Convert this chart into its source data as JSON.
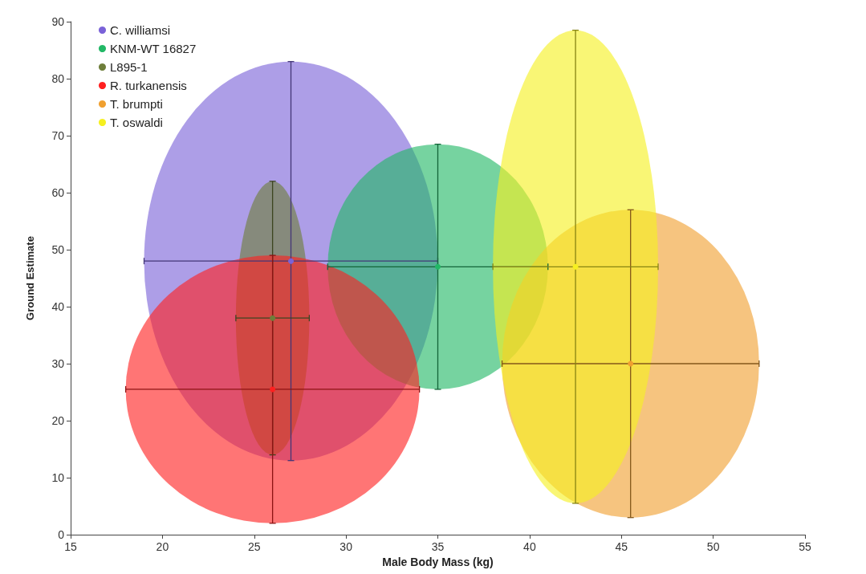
{
  "chart_data": {
    "type": "scatter",
    "xlabel": "Male Body Mass (kg)",
    "ylabel": "Ground Estimate",
    "xlim": [
      15,
      55
    ],
    "xticks": [
      15,
      20,
      25,
      30,
      35,
      40,
      45,
      50,
      55
    ],
    "ylim": [
      0,
      90
    ],
    "yticks": [
      0,
      10,
      20,
      30,
      40,
      50,
      60,
      70,
      80,
      90
    ],
    "grid": false,
    "legend": "top left",
    "marker": "circle",
    "series": [
      {
        "name": "C. williamsi",
        "color": "#7a62d8",
        "x": [
          27
        ],
        "values": [
          48
        ],
        "errors": [
          [
            13,
            83
          ]
        ],
        "xerrors": [
          [
            19,
            35
          ]
        ]
      },
      {
        "name": "KNM-WT 16827",
        "color": "#22b866",
        "x": [
          35
        ],
        "values": [
          47
        ],
        "errors": [
          [
            25.5,
            68.5
          ]
        ],
        "xerrors": [
          [
            29,
            41
          ]
        ]
      },
      {
        "name": "L895-1",
        "color": "#6e7e3a",
        "x": [
          26
        ],
        "values": [
          38
        ],
        "errors": [
          [
            14,
            62
          ]
        ],
        "xerrors": [
          [
            24,
            28
          ]
        ]
      },
      {
        "name": "R. turkanensis",
        "color": "#ff2020",
        "x": [
          26
        ],
        "values": [
          25.5
        ],
        "errors": [
          [
            2,
            49
          ]
        ],
        "xerrors": [
          [
            18,
            34
          ]
        ]
      },
      {
        "name": "T. brumpti",
        "color": "#f0a030",
        "x": [
          45.5
        ],
        "values": [
          30
        ],
        "errors": [
          [
            3,
            57
          ]
        ],
        "xerrors": [
          [
            38.5,
            52.5
          ]
        ]
      },
      {
        "name": "T. oswaldi",
        "color": "#f6f020",
        "x": [
          42.5
        ],
        "values": [
          47
        ],
        "errors": [
          [
            5.5,
            88.5
          ]
        ],
        "xerrors": [
          [
            38,
            47
          ]
        ]
      }
    ]
  }
}
